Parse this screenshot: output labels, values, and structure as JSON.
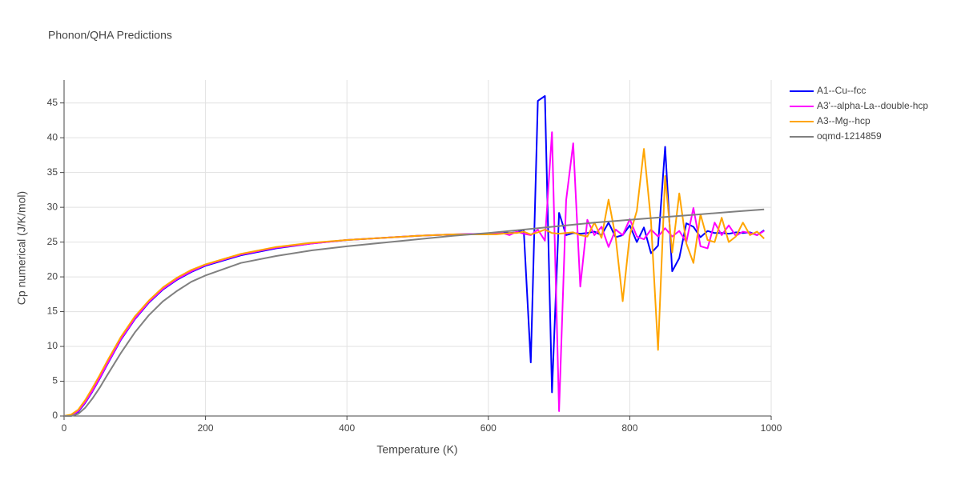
{
  "chart_data": {
    "type": "line",
    "title": "Phonon/QHA Predictions",
    "x_label": "Temperature (K)",
    "y_label": "Cp numerical (J/K/mol)",
    "xlim": [
      0,
      1000
    ],
    "xticks": [
      0,
      200,
      400,
      600,
      800,
      1000
    ],
    "ylim": [
      0,
      48.3
    ],
    "yticks": [
      0,
      5,
      10,
      15,
      20,
      25,
      30,
      35,
      40,
      45
    ],
    "grid": true,
    "legend": "top-right",
    "series": [
      {
        "name": "A1--Cu--fcc",
        "color": "#0000ff",
        "x": [
          0,
          10,
          20,
          30,
          40,
          50,
          60,
          80,
          100,
          120,
          140,
          160,
          180,
          200,
          250,
          300,
          350,
          400,
          450,
          500,
          550,
          600,
          610,
          620,
          630,
          640,
          650,
          660,
          670,
          680,
          690,
          700,
          710,
          720,
          730,
          740,
          750,
          760,
          770,
          780,
          790,
          800,
          810,
          820,
          830,
          840,
          850,
          860,
          870,
          880,
          890,
          900,
          910,
          920,
          930,
          940,
          950,
          960,
          970,
          980,
          990
        ],
        "values": [
          0,
          0.1,
          0.6,
          1.9,
          3.5,
          5.3,
          7.2,
          10.9,
          13.9,
          16.3,
          18.2,
          19.6,
          20.7,
          21.6,
          23.1,
          24.1,
          24.8,
          25.3,
          25.6,
          25.9,
          26.1,
          26.2,
          26.3,
          26.4,
          26.3,
          26.4,
          26.8,
          7.7,
          45.3,
          46.0,
          3.4,
          29.2,
          26.0,
          26.3,
          26.2,
          26.3,
          26.5,
          26.0,
          27.8,
          25.7,
          26.0,
          27.4,
          25.0,
          27.1,
          23.4,
          24.5,
          38.7,
          20.8,
          22.7,
          27.7,
          27.2,
          25.7,
          26.6,
          26.3,
          26.3,
          26.2,
          26.4,
          26.3,
          26.4,
          26.0,
          26.7
        ]
      },
      {
        "name": "A3'--alpha-La--double-hcp",
        "color": "#ff00ff",
        "x": [
          0,
          10,
          20,
          30,
          40,
          50,
          60,
          80,
          100,
          120,
          140,
          160,
          180,
          200,
          250,
          300,
          350,
          400,
          450,
          500,
          550,
          600,
          610,
          620,
          630,
          640,
          650,
          660,
          670,
          680,
          690,
          700,
          710,
          720,
          730,
          740,
          750,
          760,
          770,
          780,
          790,
          800,
          810,
          820,
          830,
          840,
          850,
          860,
          870,
          880,
          890,
          900,
          910,
          920,
          930,
          940,
          950,
          960,
          970,
          980,
          990
        ],
        "values": [
          0,
          0.1,
          0.7,
          2.0,
          3.6,
          5.4,
          7.3,
          11.0,
          14.0,
          16.4,
          18.3,
          19.7,
          20.8,
          21.7,
          23.2,
          24.2,
          24.8,
          25.3,
          25.6,
          25.9,
          26.1,
          26.2,
          26.2,
          26.3,
          26.0,
          26.5,
          26.2,
          26.0,
          26.8,
          25.2,
          40.8,
          0.7,
          31.0,
          39.2,
          18.6,
          28.2,
          26.0,
          27.2,
          24.3,
          26.8,
          26.0,
          28.3,
          25.8,
          25.4,
          26.8,
          25.8,
          27.0,
          25.8,
          26.6,
          25.0,
          29.9,
          24.4,
          24.1,
          27.8,
          26.0,
          27.4,
          25.9,
          26.5,
          26.3,
          26.0,
          26.6
        ]
      },
      {
        "name": "A3--Mg--hcp",
        "color": "#ffa500",
        "x": [
          0,
          10,
          20,
          30,
          40,
          50,
          60,
          80,
          100,
          120,
          140,
          160,
          180,
          200,
          250,
          300,
          350,
          400,
          450,
          500,
          550,
          600,
          610,
          620,
          630,
          640,
          650,
          660,
          670,
          680,
          690,
          700,
          710,
          720,
          730,
          740,
          750,
          760,
          770,
          780,
          790,
          800,
          810,
          820,
          830,
          840,
          850,
          860,
          870,
          880,
          890,
          900,
          910,
          920,
          930,
          940,
          950,
          960,
          970,
          980,
          990
        ],
        "values": [
          0,
          0.2,
          0.9,
          2.3,
          4.0,
          5.8,
          7.7,
          11.3,
          14.3,
          16.6,
          18.5,
          19.9,
          21.0,
          21.8,
          23.3,
          24.3,
          24.9,
          25.3,
          25.6,
          25.9,
          26.1,
          26.1,
          26.1,
          26.2,
          26.3,
          26.3,
          26.5,
          26.1,
          26.4,
          26.8,
          26.3,
          26.2,
          26.3,
          26.4,
          26.0,
          25.8,
          27.8,
          25.6,
          31.1,
          25.7,
          16.5,
          26.0,
          29.5,
          38.4,
          28.0,
          9.5,
          34.5,
          23.5,
          32.0,
          24.8,
          22.0,
          29.0,
          25.3,
          25.0,
          28.5,
          25.0,
          25.8,
          27.8,
          26.0,
          26.5,
          25.5
        ]
      },
      {
        "name": "oqmd-1214859",
        "color": "#808080",
        "x": [
          0,
          10,
          20,
          30,
          40,
          50,
          60,
          80,
          100,
          120,
          140,
          160,
          180,
          200,
          250,
          300,
          350,
          400,
          450,
          500,
          550,
          600,
          650,
          700,
          750,
          800,
          850,
          900,
          950,
          990
        ],
        "values": [
          0,
          0,
          0.3,
          1.2,
          2.5,
          4.0,
          5.7,
          9.0,
          12.0,
          14.5,
          16.5,
          18.0,
          19.3,
          20.2,
          22.0,
          23.0,
          23.8,
          24.4,
          24.9,
          25.4,
          25.9,
          26.3,
          26.8,
          27.3,
          27.8,
          28.2,
          28.6,
          29.0,
          29.4,
          29.7
        ]
      }
    ]
  }
}
